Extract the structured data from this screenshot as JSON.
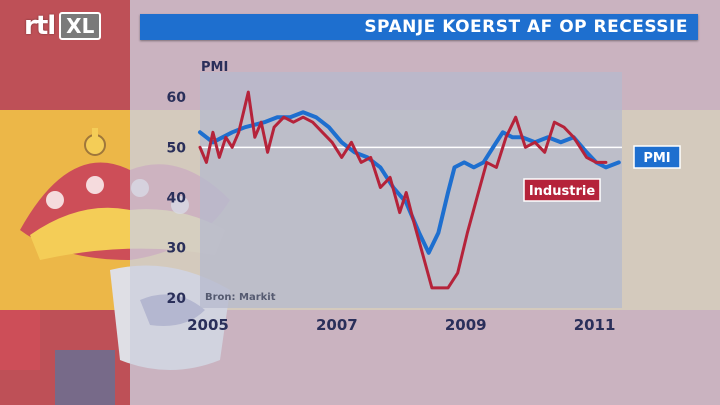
{
  "channel": {
    "logo_part1": "rtl",
    "logo_part2": "XL"
  },
  "headline": "SPANJE KOERST AF OP RECESSIE",
  "colors": {
    "pmi": "#1e6fcf",
    "industrie": "#b5233a",
    "title_bar": "#1e6fcf",
    "reference_line": "#ffffff"
  },
  "chart_data": {
    "type": "line",
    "ylabel": "PMI",
    "ylim": [
      18,
      65
    ],
    "yticks": [
      60,
      50,
      40,
      30,
      20
    ],
    "xlim": [
      2005.0,
      2011.55
    ],
    "xticks": [
      "2005",
      "2007",
      "2009",
      "2011"
    ],
    "reference_line": 50,
    "source": "Bron: Markit",
    "grid": false,
    "series": [
      {
        "name": "PMI",
        "x": [
          2005.0,
          2005.2,
          2005.35,
          2005.5,
          2005.7,
          2006.0,
          2006.2,
          2006.4,
          2006.6,
          2006.8,
          2007.0,
          2007.2,
          2007.4,
          2007.6,
          2007.8,
          2008.0,
          2008.2,
          2008.4,
          2008.55,
          2008.7,
          2008.85,
          2008.95,
          2009.1,
          2009.25,
          2009.4,
          2009.55,
          2009.7,
          2009.85,
          2010.0,
          2010.2,
          2010.4,
          2010.6,
          2010.8,
          2011.0,
          2011.15,
          2011.3,
          2011.5
        ],
        "y": [
          53,
          51,
          52,
          53,
          54,
          55,
          56,
          56,
          57,
          56,
          54,
          51,
          49,
          48,
          46,
          42,
          39,
          33,
          29,
          33,
          41,
          46,
          47,
          46,
          47,
          50,
          53,
          52,
          52,
          51,
          52,
          51,
          52,
          49,
          47,
          46,
          47
        ]
      },
      {
        "name": "Industrie",
        "x": [
          2005.0,
          2005.1,
          2005.2,
          2005.3,
          2005.4,
          2005.5,
          2005.6,
          2005.75,
          2005.85,
          2005.95,
          2006.05,
          2006.15,
          2006.3,
          2006.45,
          2006.6,
          2006.75,
          2006.9,
          2007.05,
          2007.2,
          2007.35,
          2007.5,
          2007.65,
          2007.8,
          2007.95,
          2008.1,
          2008.2,
          2008.3,
          2008.45,
          2008.6,
          2008.7,
          2008.85,
          2009.0,
          2009.15,
          2009.3,
          2009.45,
          2009.6,
          2009.75,
          2009.9,
          2010.05,
          2010.2,
          2010.35,
          2010.5,
          2010.65,
          2010.8,
          2011.0,
          2011.15,
          2011.3
        ],
        "y": [
          50,
          47,
          53,
          48,
          52,
          50,
          53,
          61,
          52,
          55,
          49,
          54,
          56,
          55,
          56,
          55,
          53,
          51,
          48,
          51,
          47,
          48,
          42,
          44,
          37,
          41,
          36,
          29,
          22,
          22,
          22,
          25,
          33,
          40,
          47,
          46,
          52,
          56,
          50,
          51,
          49,
          55,
          54,
          52,
          48,
          47,
          47
        ]
      }
    ],
    "labels": [
      {
        "series": "Industrie",
        "text": "Industrie"
      },
      {
        "series": "PMI",
        "text": "PMI"
      }
    ]
  }
}
